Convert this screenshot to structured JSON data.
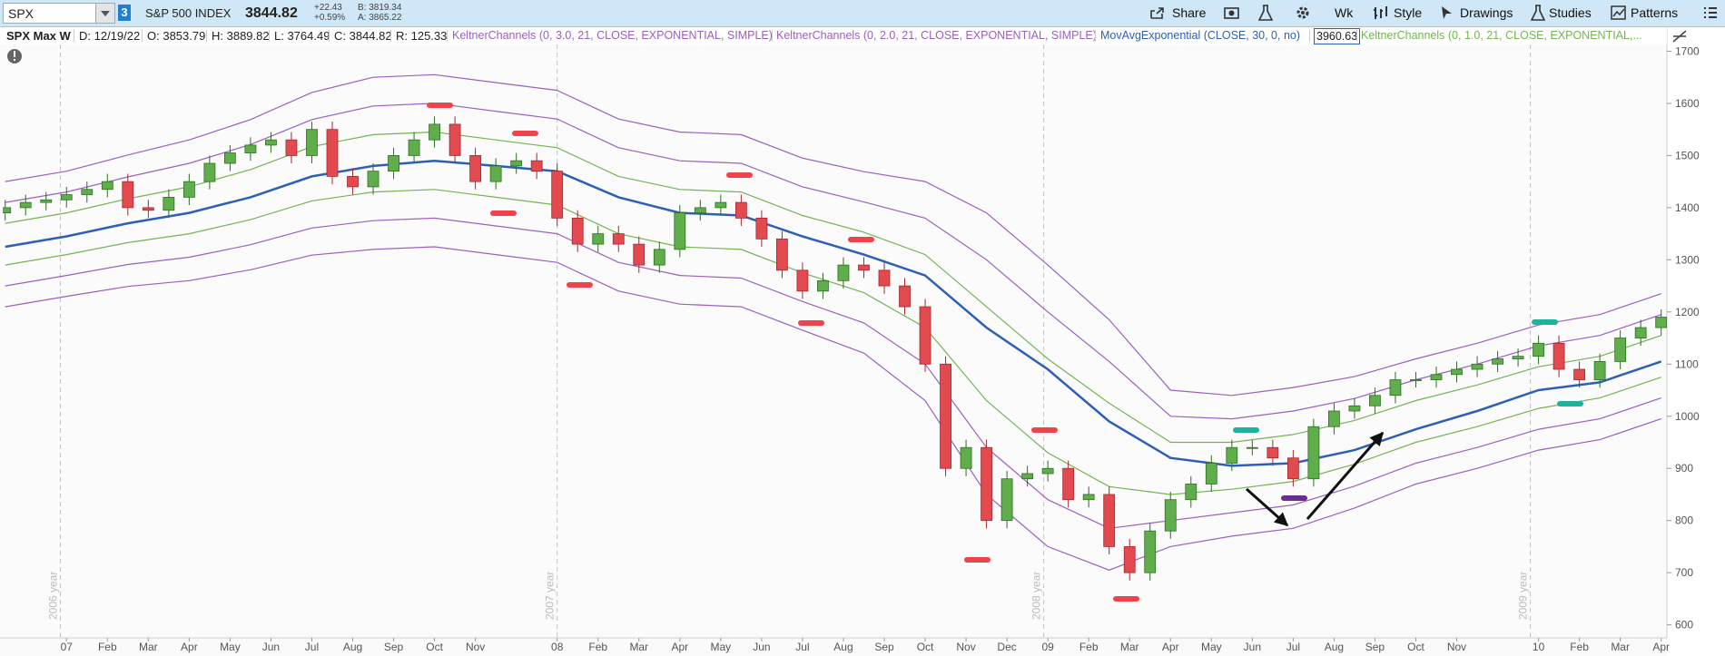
{
  "toolbar": {
    "symbol": "SPX",
    "link_badge": 3,
    "description": "S&P 500 INDEX",
    "last": 3844.82,
    "change": "+22.43",
    "change_pct": "+0.59%",
    "bid": "B: 3819.34",
    "ask": "A: 3865.22",
    "buttons": [
      "Share",
      "Wk",
      "Style",
      "Drawings",
      "Studies",
      "Patterns"
    ]
  },
  "info_bar": {
    "title": "SPX Max W",
    "date": "D: 12/19/22",
    "open": "O: 3853.79",
    "high": "H: 3889.82",
    "low": "L: 3764.49",
    "close": "C: 3844.82",
    "range": "R: 125.33"
  },
  "chart_data": {
    "type": "candlestick",
    "up_color": "#5fae4b",
    "down_color": "#e24a50",
    "x": [
      -1.5,
      -1,
      -0.5,
      0,
      0.5,
      1,
      1.5,
      2,
      2.5,
      3,
      3.5,
      4,
      4.5,
      5,
      5.5,
      6,
      6.5,
      7,
      7.5,
      8,
      8.5,
      9,
      9.5,
      10,
      10.5,
      11,
      11.5,
      12,
      12.5,
      13,
      13.5,
      14,
      14.5,
      15,
      15.5,
      16,
      16.5,
      17,
      17.5,
      18,
      18.5,
      19,
      19.5,
      20,
      20.5,
      21,
      21.5,
      22,
      22.5,
      23,
      23.5,
      24,
      24.5,
      25,
      25.5,
      26,
      26.5,
      27,
      27.5,
      28,
      28.5,
      29,
      29.5,
      30,
      30.5,
      31,
      31.5,
      32,
      32.5,
      33,
      33.5,
      34,
      34.5,
      35,
      35.5,
      36,
      36.5,
      37,
      37.5,
      38,
      38.5,
      39
    ],
    "open": [
      1390,
      1400,
      1410,
      1415,
      1425,
      1435,
      1450,
      1400,
      1395,
      1420,
      1450,
      1485,
      1505,
      1520,
      1530,
      1500,
      1550,
      1460,
      1440,
      1470,
      1500,
      1530,
      1560,
      1500,
      1450,
      1480,
      1490,
      1470,
      1380,
      1330,
      1350,
      1330,
      1290,
      1320,
      1390,
      1400,
      1410,
      1380,
      1340,
      1280,
      1240,
      1260,
      1290,
      1280,
      1250,
      1210,
      1100,
      900,
      940,
      800,
      880,
      890,
      900,
      840,
      850,
      750,
      700,
      780,
      840,
      870,
      910,
      940,
      940,
      920,
      880,
      980,
      1010,
      1020,
      1040,
      1070,
      1070,
      1080,
      1090,
      1100,
      1110,
      1115,
      1140,
      1090,
      1070,
      1105,
      1150,
      1170
    ],
    "high": [
      1415,
      1425,
      1430,
      1440,
      1450,
      1465,
      1465,
      1415,
      1435,
      1465,
      1500,
      1520,
      1535,
      1545,
      1545,
      1565,
      1565,
      1475,
      1485,
      1515,
      1545,
      1575,
      1575,
      1515,
      1495,
      1505,
      1505,
      1485,
      1395,
      1365,
      1365,
      1345,
      1335,
      1405,
      1415,
      1425,
      1425,
      1395,
      1355,
      1295,
      1275,
      1305,
      1305,
      1295,
      1265,
      1225,
      1115,
      955,
      955,
      895,
      905,
      915,
      915,
      865,
      865,
      765,
      795,
      855,
      885,
      925,
      955,
      955,
      955,
      935,
      995,
      1025,
      1035,
      1055,
      1085,
      1085,
      1095,
      1105,
      1115,
      1125,
      1130,
      1155,
      1155,
      1105,
      1120,
      1165,
      1185,
      1205
    ],
    "low": [
      1375,
      1385,
      1395,
      1400,
      1410,
      1420,
      1385,
      1380,
      1380,
      1405,
      1435,
      1470,
      1490,
      1505,
      1485,
      1485,
      1445,
      1425,
      1425,
      1455,
      1485,
      1515,
      1485,
      1435,
      1435,
      1465,
      1455,
      1365,
      1315,
      1315,
      1315,
      1275,
      1275,
      1305,
      1375,
      1385,
      1365,
      1325,
      1265,
      1225,
      1225,
      1245,
      1265,
      1235,
      1195,
      1085,
      885,
      885,
      785,
      785,
      865,
      875,
      825,
      825,
      735,
      685,
      685,
      765,
      825,
      855,
      895,
      925,
      905,
      865,
      865,
      965,
      995,
      1005,
      1025,
      1055,
      1055,
      1065,
      1075,
      1085,
      1095,
      1100,
      1075,
      1055,
      1055,
      1090,
      1135,
      1155
    ],
    "close": [
      1400,
      1410,
      1415,
      1425,
      1435,
      1450,
      1400,
      1395,
      1420,
      1450,
      1485,
      1505,
      1520,
      1530,
      1500,
      1550,
      1460,
      1440,
      1470,
      1500,
      1530,
      1560,
      1500,
      1450,
      1480,
      1490,
      1470,
      1380,
      1330,
      1350,
      1330,
      1290,
      1320,
      1390,
      1400,
      1410,
      1380,
      1340,
      1280,
      1240,
      1260,
      1290,
      1280,
      1250,
      1210,
      1100,
      900,
      940,
      800,
      880,
      890,
      900,
      840,
      850,
      750,
      700,
      780,
      840,
      870,
      910,
      940,
      940,
      920,
      880,
      980,
      1010,
      1020,
      1040,
      1070,
      1070,
      1080,
      1090,
      1100,
      1110,
      1115,
      1140,
      1090,
      1070,
      1105,
      1150,
      1170,
      1190
    ],
    "xlim": [
      -1.56,
      39.14
    ],
    "ylim": [
      575,
      1713
    ],
    "yticks": [
      600,
      700,
      800,
      900,
      1000,
      1100,
      1200,
      1300,
      1400,
      1500,
      1600,
      1700
    ],
    "xticks": [
      {
        "value": 0,
        "label": "07"
      },
      {
        "value": 1,
        "label": "Feb"
      },
      {
        "value": 2,
        "label": "Mar"
      },
      {
        "value": 3,
        "label": "Apr"
      },
      {
        "value": 4,
        "label": "May"
      },
      {
        "value": 5,
        "label": "Jun"
      },
      {
        "value": 6,
        "label": "Jul"
      },
      {
        "value": 7,
        "label": "Aug"
      },
      {
        "value": 8,
        "label": "Sep"
      },
      {
        "value": 9,
        "label": "Oct"
      },
      {
        "value": 10,
        "label": "Nov"
      },
      {
        "value": 12,
        "label": "08"
      },
      {
        "value": 13,
        "label": "Feb"
      },
      {
        "value": 14,
        "label": "Mar"
      },
      {
        "value": 15,
        "label": "Apr"
      },
      {
        "value": 16,
        "label": "May"
      },
      {
        "value": 17,
        "label": "Jun"
      },
      {
        "value": 18,
        "label": "Jul"
      },
      {
        "value": 19,
        "label": "Aug"
      },
      {
        "value": 20,
        "label": "Sep"
      },
      {
        "value": 21,
        "label": "Oct"
      },
      {
        "value": 22,
        "label": "Nov"
      },
      {
        "value": 23,
        "label": "Dec"
      },
      {
        "value": 24,
        "label": "09"
      },
      {
        "value": 25,
        "label": "Feb"
      },
      {
        "value": 26,
        "label": "Mar"
      },
      {
        "value": 27,
        "label": "Apr"
      },
      {
        "value": 28,
        "label": "May"
      },
      {
        "value": 29,
        "label": "Jun"
      },
      {
        "value": 30,
        "label": "Jul"
      },
      {
        "value": 31,
        "label": "Aug"
      },
      {
        "value": 32,
        "label": "Sep"
      },
      {
        "value": 33,
        "label": "Oct"
      },
      {
        "value": 34,
        "label": "Nov"
      },
      {
        "value": 36,
        "label": "10"
      },
      {
        "value": 37,
        "label": "Feb"
      },
      {
        "value": 38,
        "label": "Mar"
      },
      {
        "value": 39,
        "label": "Apr"
      }
    ],
    "year_lines": [
      {
        "value": -0.15,
        "label": "2006 year"
      },
      {
        "value": 12,
        "label": "2007 year"
      },
      {
        "value": 23.9,
        "label": "2008 year"
      },
      {
        "value": 35.8,
        "label": "2009 year"
      }
    ],
    "study_x": [
      -1.5,
      0,
      1.5,
      3,
      4.5,
      6,
      7.5,
      9,
      10.5,
      12,
      13.5,
      15,
      16.5,
      18,
      19.5,
      21,
      22.5,
      24,
      25.5,
      27,
      28.5,
      30,
      31.5,
      33,
      34.5,
      36,
      37.5,
      39
    ],
    "studies": [
      {
        "label": "KeltnerChannels (0, 3.0, 21, CLOSE, EXPONENTIAL, SIMPLE)",
        "color": "#9b5fc0",
        "upper": [
          1450,
          1470,
          1501,
          1530,
          1569,
          1621,
          1650,
          1655,
          1640,
          1625,
          1570,
          1545,
          1540,
          1495,
          1469,
          1450,
          1390,
          1290,
          1185,
          1050,
          1040,
          1055,
          1076,
          1110,
          1140,
          1175,
          1195,
          1235
        ],
        "lower": [
          1210,
          1230,
          1249,
          1260,
          1281,
          1309,
          1320,
          1325,
          1310,
          1295,
          1240,
          1215,
          1210,
          1165,
          1121,
          1030,
          850,
          750,
          705,
          750,
          770,
          785,
          824,
          870,
          900,
          935,
          955,
          995
        ]
      },
      {
        "label": "KeltnerChannels (0, 2.0, 21, CLOSE, EXPONENTIAL, SIMPLE)",
        "color": "#9b5fc0",
        "upper": [
          1410,
          1430,
          1459,
          1485,
          1521,
          1569,
          1595,
          1600,
          1585,
          1570,
          1515,
          1490,
          1485,
          1440,
          1411,
          1380,
          1300,
          1200,
          1105,
          1000,
          995,
          1010,
          1034,
          1070,
          1100,
          1135,
          1155,
          1195
        ],
        "lower": [
          1250,
          1270,
          1291,
          1305,
          1329,
          1361,
          1375,
          1380,
          1365,
          1350,
          1295,
          1270,
          1265,
          1220,
          1179,
          1100,
          940,
          840,
          785,
          800,
          815,
          830,
          866,
          910,
          940,
          975,
          995,
          1035
        ]
      },
      {
        "label": "MovAvgExponential (CLOSE, 30, 0, no)",
        "color": "#2d5fb6",
        "last_value": 3960.63,
        "values": [
          1325,
          1345,
          1370,
          1390,
          1420,
          1460,
          1480,
          1490,
          1480,
          1470,
          1420,
          1390,
          1385,
          1345,
          1310,
          1270,
          1170,
          1090,
          990,
          920,
          905,
          910,
          935,
          975,
          1010,
          1050,
          1065,
          1105
        ]
      },
      {
        "label": "KeltnerChannels (0, 1.0, 21, CLOSE, EXPONENTIAL,...",
        "color": "#72b552",
        "upper": [
          1370,
          1390,
          1417,
          1440,
          1473,
          1517,
          1540,
          1545,
          1530,
          1515,
          1460,
          1435,
          1430,
          1385,
          1353,
          1310,
          1210,
          1110,
          1025,
          950,
          950,
          965,
          992,
          1030,
          1060,
          1095,
          1115,
          1155
        ],
        "lower": [
          1290,
          1310,
          1333,
          1350,
          1377,
          1413,
          1430,
          1435,
          1420,
          1405,
          1350,
          1325,
          1320,
          1275,
          1237,
          1170,
          1030,
          930,
          865,
          850,
          860,
          875,
          908,
          950,
          980,
          1015,
          1035,
          1075
        ]
      }
    ]
  }
}
